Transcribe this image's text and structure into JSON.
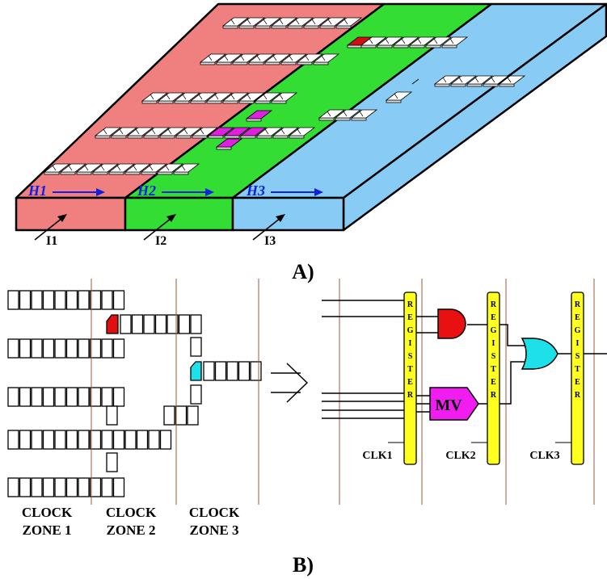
{
  "panel_a": {
    "label": "A)",
    "zones": [
      {
        "field": "H1",
        "input": "I1"
      },
      {
        "field": "H2",
        "input": "I2"
      },
      {
        "field": "H3",
        "input": "I3"
      }
    ]
  },
  "panel_b": {
    "label": "B)",
    "clock_zones": [
      {
        "line1": "CLOCK",
        "line2": "ZONE 1"
      },
      {
        "line1": "CLOCK",
        "line2": "ZONE 2"
      },
      {
        "line1": "CLOCK",
        "line2": "ZONE 3"
      }
    ],
    "registers": [
      "REGISTER",
      "REGISTER",
      "REGISTER"
    ],
    "clocks": [
      "CLK1",
      "CLK2",
      "CLK3"
    ],
    "majority_gate": "MV"
  }
}
